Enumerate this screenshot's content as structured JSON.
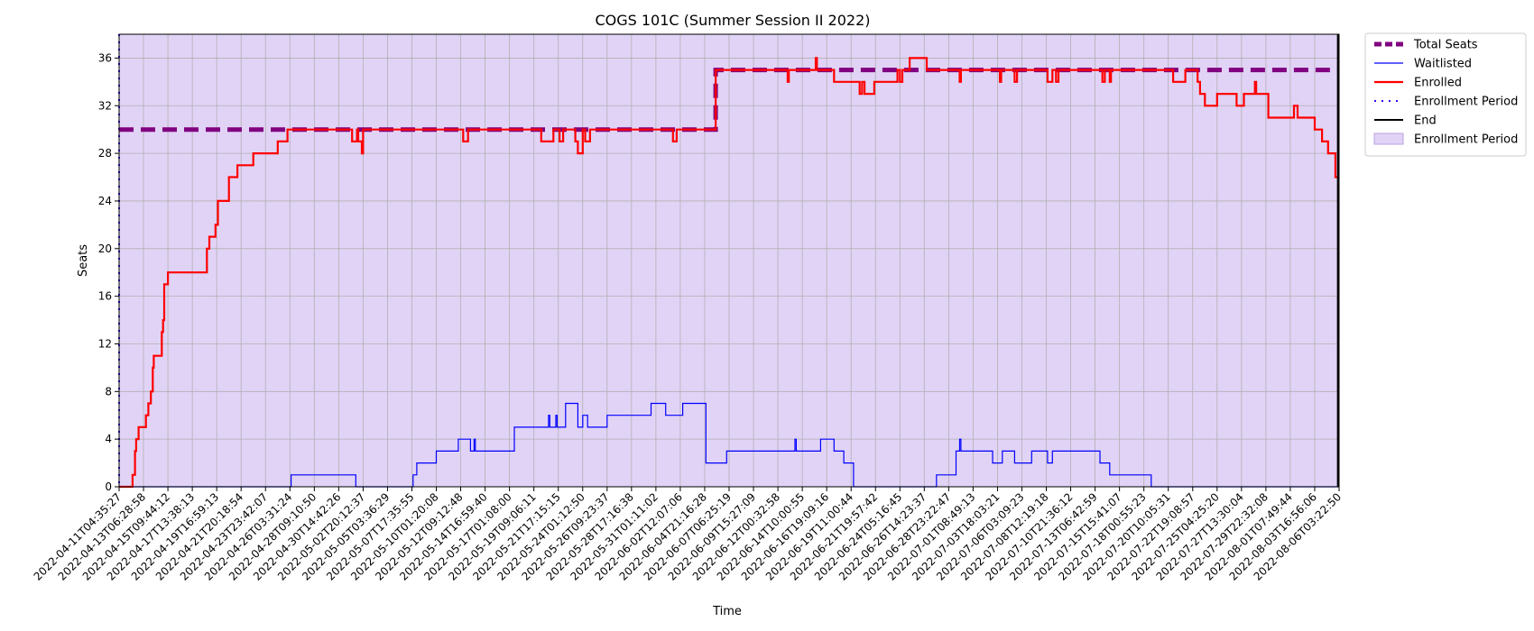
{
  "chart_data": {
    "type": "line",
    "title": "COGS 101C (Summer Session II 2022)",
    "xlabel": "Time",
    "ylabel": "Seats",
    "ylim": [
      0,
      38
    ],
    "yticks": [
      0,
      4,
      8,
      12,
      16,
      20,
      24,
      28,
      32,
      36
    ],
    "grid": true,
    "legend_position": "outside-top-right",
    "background_shading": "#e1d3f6",
    "x_tick_labels": [
      "2022-04-11T04:35:27",
      "2022-04-13T06:28:58",
      "2022-04-15T09:44:12",
      "2022-04-17T13:38:13",
      "2022-04-19T16:59:13",
      "2022-04-21T20:18:54",
      "2022-04-23T23:42:07",
      "2022-04-26T03:31:24",
      "2022-04-28T09:10:50",
      "2022-04-30T14:42:26",
      "2022-05-02T20:12:37",
      "2022-05-05T03:36:29",
      "2022-05-07T17:35:55",
      "2022-05-10T01:20:08",
      "2022-05-12T09:12:48",
      "2022-05-14T16:59:40",
      "2022-05-17T01:08:00",
      "2022-05-19T09:06:11",
      "2022-05-21T17:15:15",
      "2022-05-24T01:12:50",
      "2022-05-26T09:23:37",
      "2022-05-28T17:16:38",
      "2022-05-31T01:11:02",
      "2022-06-02T12:07:06",
      "2022-06-04T21:16:28",
      "2022-06-07T06:25:19",
      "2022-06-09T15:27:09",
      "2022-06-12T00:32:58",
      "2022-06-14T10:00:55",
      "2022-06-16T19:09:16",
      "2022-06-19T11:00:44",
      "2022-06-21T19:57:42",
      "2022-06-24T05:16:45",
      "2022-06-26T14:23:37",
      "2022-06-28T23:22:47",
      "2022-07-01T08:49:13",
      "2022-07-03T18:03:21",
      "2022-07-06T03:09:23",
      "2022-07-08T12:19:18",
      "2022-07-10T21:36:12",
      "2022-07-13T06:42:59",
      "2022-07-15T15:41:07",
      "2022-07-18T00:55:23",
      "2022-07-20T10:05:31",
      "2022-07-22T19:08:57",
      "2022-07-25T04:25:20",
      "2022-07-27T13:30:04",
      "2022-07-29T22:32:08",
      "2022-08-01T07:49:44",
      "2022-08-03T16:56:06",
      "2022-08-06T03:22:50"
    ],
    "series": [
      {
        "name": "Total Seats",
        "color": "#800080",
        "style": "dashed-thick",
        "points": [
          [
            0,
            30
          ],
          [
            24.45,
            30
          ],
          [
            24.45,
            35
          ],
          [
            50,
            35
          ]
        ]
      },
      {
        "name": "Waitlisted",
        "color": "#0000ff",
        "style": "solid-thin",
        "points": [
          [
            0,
            0
          ],
          [
            7.05,
            0
          ],
          [
            7.05,
            1
          ],
          [
            9.7,
            1
          ],
          [
            9.7,
            0
          ],
          [
            12.05,
            0
          ],
          [
            12.05,
            1
          ],
          [
            12.2,
            1
          ],
          [
            12.2,
            2
          ],
          [
            13,
            2
          ],
          [
            13,
            3
          ],
          [
            13.9,
            3
          ],
          [
            13.9,
            4
          ],
          [
            14.4,
            4
          ],
          [
            14.4,
            3
          ],
          [
            14.55,
            3
          ],
          [
            14.55,
            4
          ],
          [
            14.6,
            4
          ],
          [
            14.6,
            3
          ],
          [
            16.2,
            3
          ],
          [
            16.2,
            5
          ],
          [
            17.6,
            5
          ],
          [
            17.6,
            6
          ],
          [
            17.65,
            6
          ],
          [
            17.65,
            5
          ],
          [
            17.9,
            5
          ],
          [
            17.9,
            6
          ],
          [
            17.95,
            6
          ],
          [
            17.95,
            5
          ],
          [
            18.3,
            5
          ],
          [
            18.3,
            7
          ],
          [
            18.8,
            7
          ],
          [
            18.8,
            5
          ],
          [
            19.0,
            5
          ],
          [
            19.0,
            6
          ],
          [
            19.2,
            6
          ],
          [
            19.2,
            5
          ],
          [
            20.0,
            5
          ],
          [
            20.0,
            6
          ],
          [
            21.8,
            6
          ],
          [
            21.8,
            7
          ],
          [
            22.4,
            7
          ],
          [
            22.4,
            6
          ],
          [
            23.1,
            6
          ],
          [
            23.1,
            7
          ],
          [
            24.05,
            7
          ],
          [
            24.05,
            2
          ],
          [
            24.9,
            2
          ],
          [
            24.9,
            3
          ],
          [
            27.7,
            3
          ],
          [
            27.7,
            4
          ],
          [
            27.75,
            4
          ],
          [
            27.75,
            3
          ],
          [
            28.75,
            3
          ],
          [
            28.75,
            4
          ],
          [
            29.3,
            4
          ],
          [
            29.3,
            3
          ],
          [
            29.7,
            3
          ],
          [
            29.7,
            2
          ],
          [
            30.1,
            2
          ],
          [
            30.1,
            0
          ],
          [
            33.5,
            0
          ],
          [
            33.5,
            1
          ],
          [
            34.3,
            1
          ],
          [
            34.3,
            3
          ],
          [
            34.45,
            3
          ],
          [
            34.45,
            4
          ],
          [
            34.5,
            4
          ],
          [
            34.5,
            3
          ],
          [
            35.8,
            3
          ],
          [
            35.8,
            2
          ],
          [
            36.2,
            2
          ],
          [
            36.2,
            3
          ],
          [
            36.7,
            3
          ],
          [
            36.7,
            2
          ],
          [
            37.4,
            2
          ],
          [
            37.4,
            3
          ],
          [
            38.05,
            3
          ],
          [
            38.05,
            2
          ],
          [
            38.25,
            2
          ],
          [
            38.25,
            3
          ],
          [
            40.2,
            3
          ],
          [
            40.2,
            2
          ],
          [
            40.6,
            2
          ],
          [
            40.6,
            1
          ],
          [
            42.3,
            1
          ],
          [
            42.3,
            0
          ],
          [
            50,
            0
          ]
        ]
      },
      {
        "name": "Enrolled",
        "color": "#ff0000",
        "style": "solid",
        "points": [
          [
            0,
            0
          ],
          [
            0.55,
            0
          ],
          [
            0.55,
            1
          ],
          [
            0.65,
            1
          ],
          [
            0.65,
            3
          ],
          [
            0.7,
            3
          ],
          [
            0.7,
            4
          ],
          [
            0.8,
            4
          ],
          [
            0.8,
            5
          ],
          [
            1.1,
            5
          ],
          [
            1.1,
            6
          ],
          [
            1.2,
            6
          ],
          [
            1.2,
            7
          ],
          [
            1.3,
            7
          ],
          [
            1.3,
            8
          ],
          [
            1.38,
            8
          ],
          [
            1.38,
            10
          ],
          [
            1.42,
            10
          ],
          [
            1.42,
            11
          ],
          [
            1.75,
            11
          ],
          [
            1.75,
            13
          ],
          [
            1.8,
            13
          ],
          [
            1.8,
            14
          ],
          [
            1.85,
            14
          ],
          [
            1.85,
            17
          ],
          [
            2.0,
            17
          ],
          [
            2.0,
            18
          ],
          [
            3.6,
            18
          ],
          [
            3.6,
            20
          ],
          [
            3.7,
            20
          ],
          [
            3.7,
            21
          ],
          [
            3.95,
            21
          ],
          [
            3.95,
            22
          ],
          [
            4.05,
            22
          ],
          [
            4.05,
            24
          ],
          [
            4.5,
            24
          ],
          [
            4.5,
            26
          ],
          [
            4.85,
            26
          ],
          [
            4.85,
            27
          ],
          [
            5.5,
            27
          ],
          [
            5.5,
            28
          ],
          [
            6.5,
            28
          ],
          [
            6.5,
            29
          ],
          [
            6.9,
            29
          ],
          [
            6.9,
            30
          ],
          [
            9.55,
            30
          ],
          [
            9.55,
            29
          ],
          [
            9.75,
            29
          ],
          [
            9.75,
            30
          ],
          [
            9.8,
            30
          ],
          [
            9.8,
            29
          ],
          [
            9.95,
            29
          ],
          [
            9.95,
            28
          ],
          [
            10.0,
            28
          ],
          [
            10.0,
            30
          ],
          [
            14.1,
            30
          ],
          [
            14.1,
            29
          ],
          [
            14.3,
            29
          ],
          [
            14.3,
            30
          ],
          [
            17.3,
            30
          ],
          [
            17.3,
            29
          ],
          [
            17.8,
            29
          ],
          [
            17.8,
            30
          ],
          [
            18.05,
            30
          ],
          [
            18.05,
            29
          ],
          [
            18.2,
            29
          ],
          [
            18.2,
            30
          ],
          [
            18.7,
            30
          ],
          [
            18.7,
            29
          ],
          [
            18.8,
            29
          ],
          [
            18.8,
            28
          ],
          [
            19.0,
            28
          ],
          [
            19.0,
            30
          ],
          [
            19.1,
            30
          ],
          [
            19.1,
            29
          ],
          [
            19.3,
            29
          ],
          [
            19.3,
            30
          ],
          [
            22.7,
            30
          ],
          [
            22.7,
            29
          ],
          [
            22.85,
            29
          ],
          [
            22.85,
            30
          ],
          [
            24.45,
            30
          ],
          [
            24.45,
            35
          ],
          [
            27.4,
            35
          ],
          [
            27.4,
            34
          ],
          [
            27.45,
            34
          ],
          [
            27.45,
            35
          ],
          [
            28.55,
            35
          ],
          [
            28.55,
            36
          ],
          [
            28.6,
            36
          ],
          [
            28.6,
            35
          ],
          [
            29.3,
            35
          ],
          [
            29.3,
            34
          ],
          [
            30.35,
            34
          ],
          [
            30.35,
            33
          ],
          [
            30.45,
            33
          ],
          [
            30.45,
            34
          ],
          [
            30.55,
            34
          ],
          [
            30.55,
            33
          ],
          [
            30.95,
            33
          ],
          [
            30.95,
            34
          ],
          [
            31.9,
            34
          ],
          [
            31.9,
            35
          ],
          [
            32.0,
            35
          ],
          [
            32.0,
            34
          ],
          [
            32.1,
            34
          ],
          [
            32.1,
            35
          ],
          [
            32.4,
            35
          ],
          [
            32.4,
            36
          ],
          [
            33.1,
            36
          ],
          [
            33.1,
            35
          ],
          [
            34.45,
            35
          ],
          [
            34.45,
            34
          ],
          [
            34.5,
            34
          ],
          [
            34.5,
            35
          ],
          [
            36.1,
            35
          ],
          [
            36.1,
            34
          ],
          [
            36.15,
            34
          ],
          [
            36.15,
            35
          ],
          [
            36.7,
            35
          ],
          [
            36.7,
            34
          ],
          [
            36.8,
            34
          ],
          [
            36.8,
            35
          ],
          [
            38.05,
            35
          ],
          [
            38.05,
            34
          ],
          [
            38.25,
            34
          ],
          [
            38.25,
            35
          ],
          [
            38.4,
            35
          ],
          [
            38.4,
            34
          ],
          [
            38.5,
            34
          ],
          [
            38.5,
            35
          ],
          [
            40.3,
            35
          ],
          [
            40.3,
            34
          ],
          [
            40.4,
            34
          ],
          [
            40.4,
            35
          ],
          [
            40.6,
            35
          ],
          [
            40.6,
            34
          ],
          [
            40.65,
            34
          ],
          [
            40.65,
            35
          ],
          [
            43.2,
            35
          ],
          [
            43.2,
            34
          ],
          [
            43.7,
            34
          ],
          [
            43.7,
            35
          ],
          [
            44.2,
            35
          ],
          [
            44.2,
            34
          ],
          [
            44.3,
            34
          ],
          [
            44.3,
            33
          ],
          [
            44.5,
            33
          ],
          [
            44.5,
            32
          ],
          [
            45.0,
            32
          ],
          [
            45.0,
            33
          ],
          [
            45.8,
            33
          ],
          [
            45.8,
            32
          ],
          [
            46.1,
            32
          ],
          [
            46.1,
            33
          ],
          [
            46.55,
            33
          ],
          [
            46.55,
            34
          ],
          [
            46.6,
            34
          ],
          [
            46.6,
            33
          ],
          [
            47.1,
            33
          ],
          [
            47.1,
            31
          ],
          [
            48.15,
            31
          ],
          [
            48.15,
            32
          ],
          [
            48.3,
            32
          ],
          [
            48.3,
            31
          ],
          [
            49.0,
            31
          ],
          [
            49.0,
            30
          ],
          [
            49.3,
            30
          ],
          [
            49.3,
            29
          ],
          [
            49.55,
            29
          ],
          [
            49.55,
            28
          ],
          [
            49.85,
            28
          ],
          [
            49.85,
            26
          ],
          [
            49.95,
            26
          ],
          [
            49.95,
            26
          ],
          [
            50,
            26
          ]
        ]
      }
    ],
    "enrollment_period": [
      0,
      50
    ],
    "end_marker": 49.95,
    "legend": [
      "Total Seats",
      "Waitlisted",
      "Enrolled",
      "Enrollment Period",
      "End",
      "Enrollment Period"
    ]
  }
}
